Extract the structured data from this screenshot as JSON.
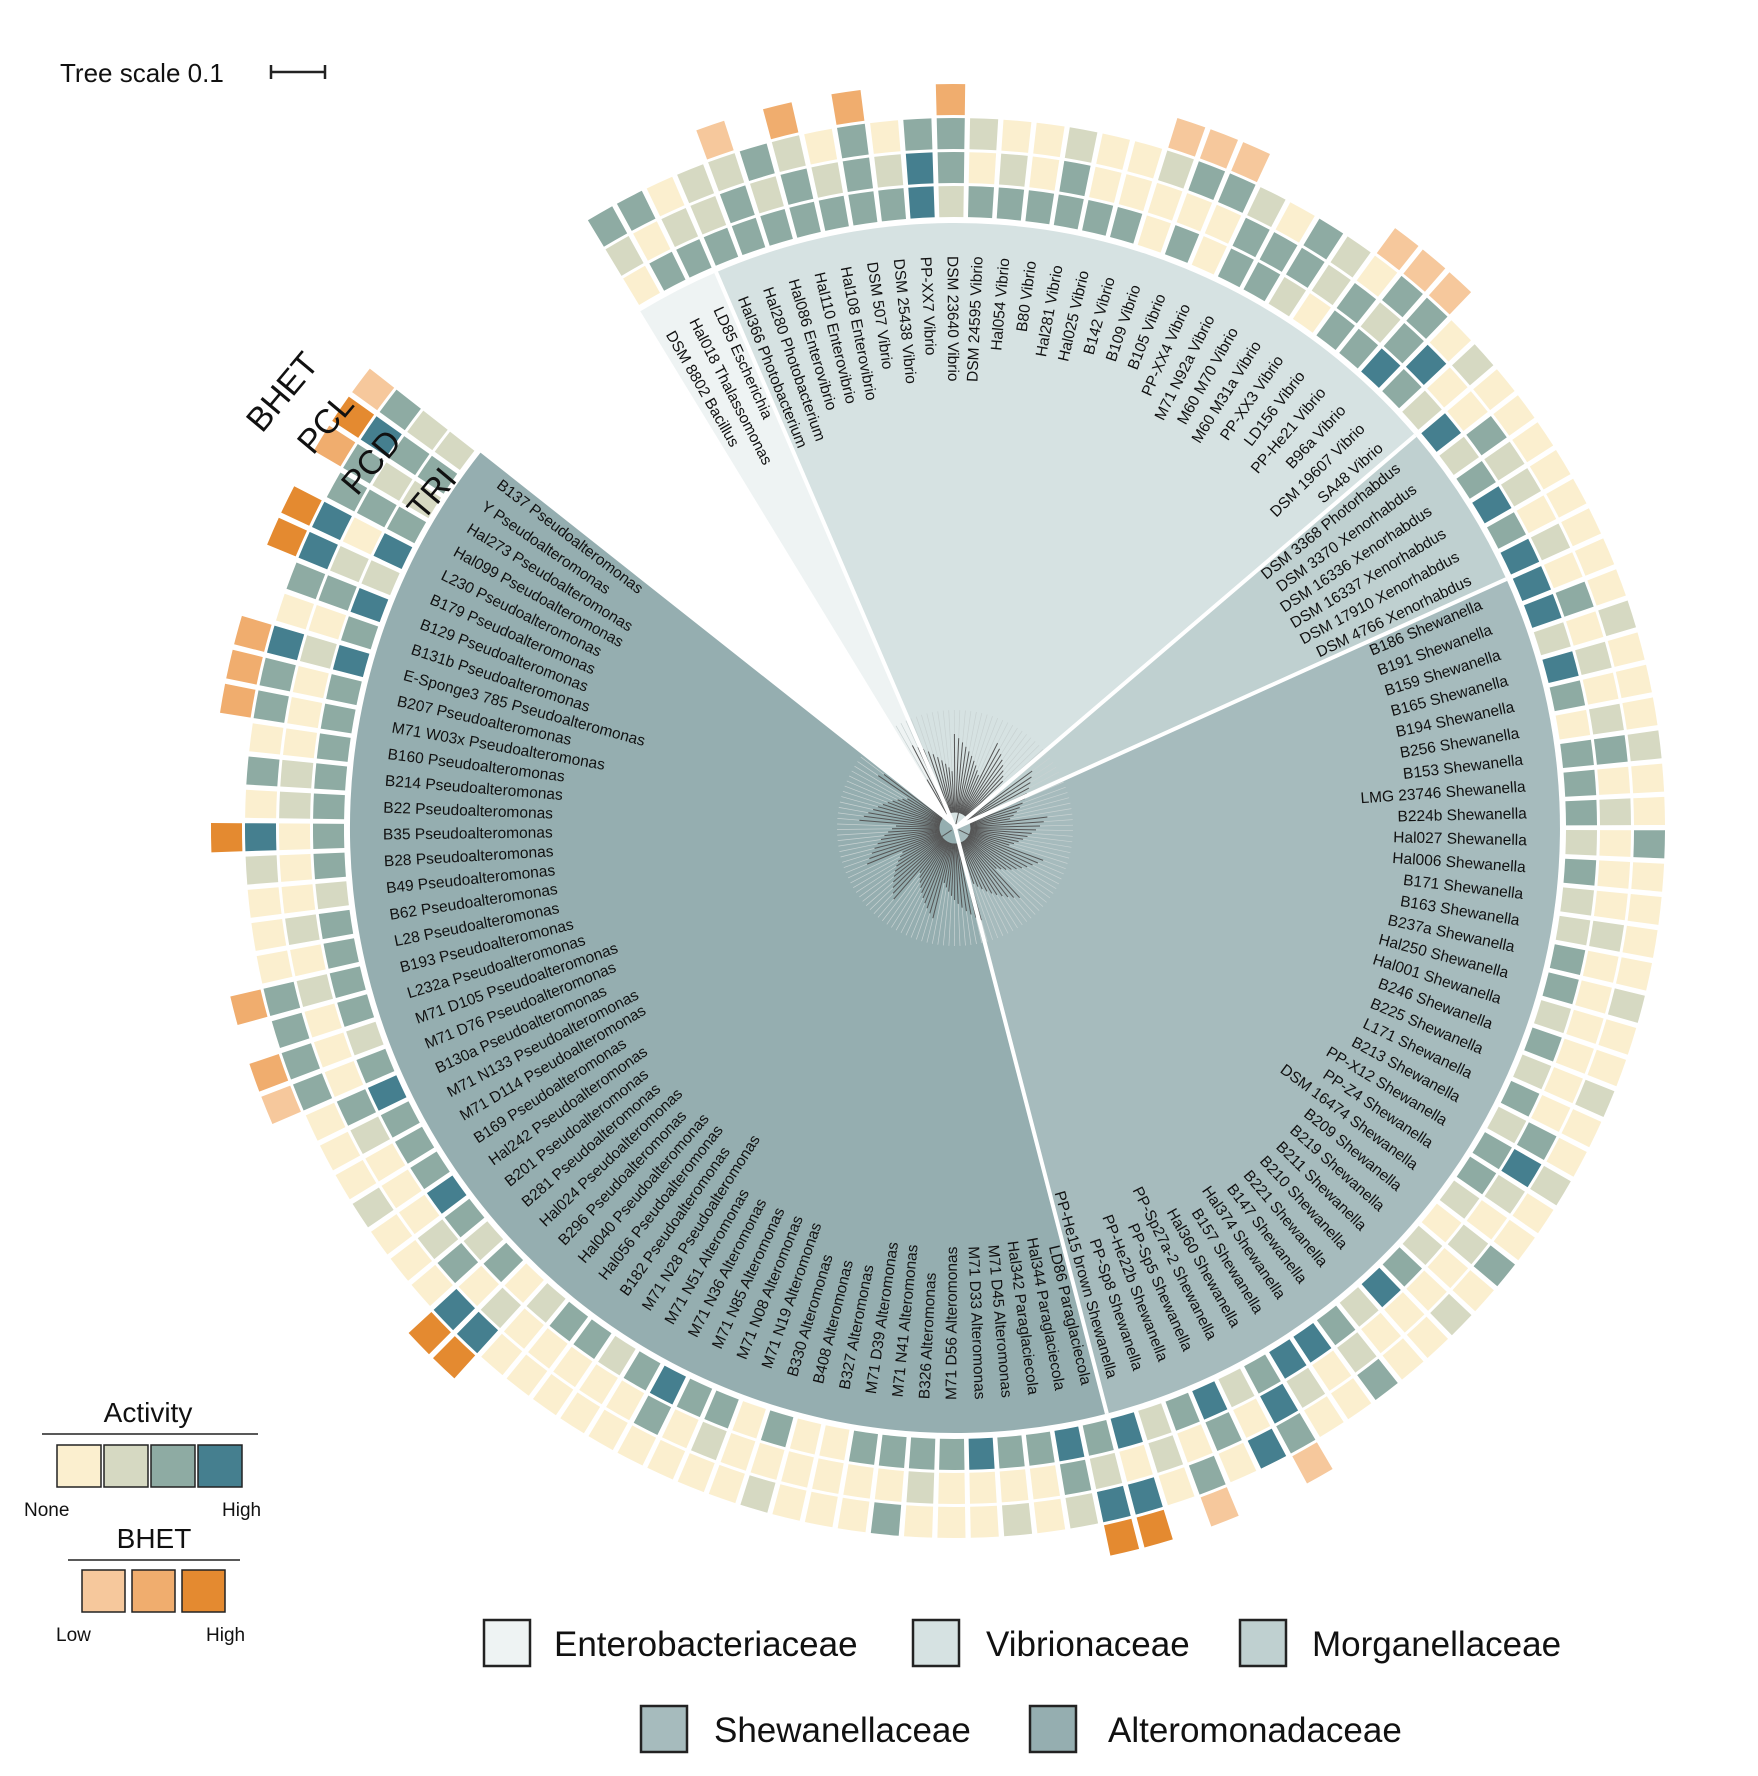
{
  "scale": {
    "label": "Tree scale 0.1"
  },
  "ring_labels": {
    "bhet": "BHET",
    "pcl": "PCL",
    "pcd": "PCD",
    "tri": "TRI"
  },
  "activity_legend": {
    "title": "Activity",
    "low": "None",
    "high": "High",
    "colors": [
      "#fbefcf",
      "#d6d9c2",
      "#8eaba3",
      "#457f8f"
    ]
  },
  "bhet_legend": {
    "title": "BHET",
    "low": "Low",
    "high": "High",
    "colors": [
      "#f6c89c",
      "#f0ad6e",
      "#e48a30"
    ]
  },
  "families": [
    {
      "name": "Enterobacteriaceae",
      "color": "#eef3f3"
    },
    {
      "name": "Vibrionaceae",
      "color": "#d6e2e2"
    },
    {
      "name": "Morganellaceae",
      "color": "#bfd0d0"
    },
    {
      "name": "Shewanellaceae",
      "color": "#a6bbbd"
    },
    {
      "name": "Alteromonadaceae",
      "color": "#95aeb0"
    }
  ],
  "taxa": [
    {
      "name": "DSM 8802 Bacillus",
      "family": 0,
      "tri": 0,
      "pcd": 1,
      "pcl": 2,
      "bhet": 0
    },
    {
      "name": "Hal018 Thalassomonas",
      "family": 0,
      "tri": 2,
      "pcd": 0,
      "pcl": 2,
      "bhet": 0
    },
    {
      "name": "LD85 Escherichia",
      "family": 0,
      "tri": 2,
      "pcd": 1,
      "pcl": 0,
      "bhet": 0
    },
    {
      "name": "Hal366 Photobacterium",
      "family": 1,
      "tri": 2,
      "pcd": 1,
      "pcl": 1,
      "bhet": 0
    },
    {
      "name": "Hal280 Photobacterium",
      "family": 1,
      "tri": 2,
      "pcd": 2,
      "pcl": 1,
      "bhet": 1
    },
    {
      "name": "Hal086 Enterovibrio",
      "family": 1,
      "tri": 2,
      "pcd": 1,
      "pcl": 2,
      "bhet": 0
    },
    {
      "name": "Hal110 Enterovibrio",
      "family": 1,
      "tri": 2,
      "pcd": 2,
      "pcl": 1,
      "bhet": 2
    },
    {
      "name": "Hal108 Enterovibrio",
      "family": 1,
      "tri": 2,
      "pcd": 1,
      "pcl": 0,
      "bhet": 0
    },
    {
      "name": "DSM 507 Vibrio",
      "family": 1,
      "tri": 2,
      "pcd": 2,
      "pcl": 2,
      "bhet": 2
    },
    {
      "name": "DSM 25438 Vibrio",
      "family": 1,
      "tri": 2,
      "pcd": 1,
      "pcl": 0,
      "bhet": 0
    },
    {
      "name": "PP-XX7 Vibrio",
      "family": 1,
      "tri": 3,
      "pcd": 3,
      "pcl": 2,
      "bhet": 0
    },
    {
      "name": "DSM 23640 Vibrio",
      "family": 1,
      "tri": 1,
      "pcd": 2,
      "pcl": 2,
      "bhet": 2
    },
    {
      "name": "DSM 24595 Vibrio",
      "family": 1,
      "tri": 2,
      "pcd": 0,
      "pcl": 1,
      "bhet": 0
    },
    {
      "name": "Hal054 Vibrio",
      "family": 1,
      "tri": 2,
      "pcd": 1,
      "pcl": 0,
      "bhet": 0
    },
    {
      "name": "B80 Vibrio",
      "family": 1,
      "tri": 2,
      "pcd": 0,
      "pcl": 0,
      "bhet": 0
    },
    {
      "name": "Hal281 Vibrio",
      "family": 1,
      "tri": 2,
      "pcd": 2,
      "pcl": 1,
      "bhet": 0
    },
    {
      "name": "Hal025 Vibrio",
      "family": 1,
      "tri": 2,
      "pcd": 0,
      "pcl": 0,
      "bhet": 0
    },
    {
      "name": "B142 Vibrio",
      "family": 1,
      "tri": 2,
      "pcd": 0,
      "pcl": 0,
      "bhet": 0
    },
    {
      "name": "B109 Vibrio",
      "family": 1,
      "tri": 0,
      "pcd": 0,
      "pcl": 1,
      "bhet": 1
    },
    {
      "name": "B105 Vibrio",
      "family": 1,
      "tri": 2,
      "pcd": 0,
      "pcl": 2,
      "bhet": 1
    },
    {
      "name": "PP-XX4 Vibrio",
      "family": 1,
      "tri": 0,
      "pcd": 0,
      "pcl": 2,
      "bhet": 1
    },
    {
      "name": "M71 N92a Vibrio",
      "family": 1,
      "tri": 2,
      "pcd": 2,
      "pcl": 1,
      "bhet": 0
    },
    {
      "name": "M60 M70 Vibrio",
      "family": 1,
      "tri": 2,
      "pcd": 2,
      "pcl": 0,
      "bhet": 0
    },
    {
      "name": "M60 M31a Vibrio",
      "family": 1,
      "tri": 1,
      "pcd": 2,
      "pcl": 2,
      "bhet": 0
    },
    {
      "name": "PP-XX3 Vibrio",
      "family": 1,
      "tri": 0,
      "pcd": 1,
      "pcl": 1,
      "bhet": 0
    },
    {
      "name": "LD156 Vibrio",
      "family": 1,
      "tri": 2,
      "pcd": 2,
      "pcl": 0,
      "bhet": 1
    },
    {
      "name": "PP-He21 Vibrio",
      "family": 1,
      "tri": 2,
      "pcd": 1,
      "pcl": 2,
      "bhet": 1
    },
    {
      "name": "B96a Vibrio",
      "family": 1,
      "tri": 3,
      "pcd": 2,
      "pcl": 2,
      "bhet": 1
    },
    {
      "name": "DSM 19607 Vibrio",
      "family": 1,
      "tri": 2,
      "pcd": 3,
      "pcl": 0,
      "bhet": 0
    },
    {
      "name": "SA48 Vibrio",
      "family": 1,
      "tri": 1,
      "pcd": 0,
      "pcl": 1,
      "bhet": 0
    },
    {
      "name": "DSM 3368 Photorhabdus",
      "family": 2,
      "tri": 3,
      "pcd": 0,
      "pcl": 0,
      "bhet": 0
    },
    {
      "name": "DSM 3370 Xenorhabdus",
      "family": 2,
      "tri": 1,
      "pcd": 2,
      "pcl": 0,
      "bhet": 0
    },
    {
      "name": "DSM 16336 Xenorhabdus",
      "family": 2,
      "tri": 2,
      "pcd": 1,
      "pcl": 0,
      "bhet": 0
    },
    {
      "name": "DSM 16337 Xenorhabdus",
      "family": 2,
      "tri": 3,
      "pcd": 1,
      "pcl": 0,
      "bhet": 0
    },
    {
      "name": "DSM 17910 Xenorhabdus",
      "family": 2,
      "tri": 2,
      "pcd": 0,
      "pcl": 0,
      "bhet": 0
    },
    {
      "name": "DSM 4766 Xenorhabdus",
      "family": 2,
      "tri": 3,
      "pcd": 1,
      "pcl": 0,
      "bhet": 0
    },
    {
      "name": "B186 Shewanella",
      "family": 3,
      "tri": 3,
      "pcd": 0,
      "pcl": 0,
      "bhet": 0
    },
    {
      "name": "B191 Shewanella",
      "family": 3,
      "tri": 3,
      "pcd": 2,
      "pcl": 0,
      "bhet": 0
    },
    {
      "name": "B159 Shewanella",
      "family": 3,
      "tri": 1,
      "pcd": 0,
      "pcl": 1,
      "bhet": 0
    },
    {
      "name": "B165 Shewanella",
      "family": 3,
      "tri": 3,
      "pcd": 1,
      "pcl": 0,
      "bhet": 0
    },
    {
      "name": "B194 Shewanella",
      "family": 3,
      "tri": 2,
      "pcd": 0,
      "pcl": 0,
      "bhet": 0
    },
    {
      "name": "B256 Shewanella",
      "family": 3,
      "tri": 0,
      "pcd": 1,
      "pcl": 0,
      "bhet": 0
    },
    {
      "name": "B153 Shewanella",
      "family": 3,
      "tri": 2,
      "pcd": 2,
      "pcl": 1,
      "bhet": 0
    },
    {
      "name": "LMG 23746 Shewanella",
      "family": 3,
      "tri": 2,
      "pcd": 0,
      "pcl": 0,
      "bhet": 0
    },
    {
      "name": "B224b Shewanella",
      "family": 3,
      "tri": 2,
      "pcd": 1,
      "pcl": 0,
      "bhet": 0
    },
    {
      "name": "Hal027 Shewanella",
      "family": 3,
      "tri": 1,
      "pcd": 0,
      "pcl": 2,
      "bhet": 0
    },
    {
      "name": "Hal006 Shewanella",
      "family": 3,
      "tri": 2,
      "pcd": 0,
      "pcl": 0,
      "bhet": 0
    },
    {
      "name": "B171 Shewanella",
      "family": 3,
      "tri": 1,
      "pcd": 0,
      "pcl": 0,
      "bhet": 0
    },
    {
      "name": "B163 Shewanella",
      "family": 3,
      "tri": 1,
      "pcd": 1,
      "pcl": 0,
      "bhet": 0
    },
    {
      "name": "B237a Shewanella",
      "family": 3,
      "tri": 2,
      "pcd": 0,
      "pcl": 0,
      "bhet": 0
    },
    {
      "name": "Hal250 Shewanella",
      "family": 3,
      "tri": 2,
      "pcd": 0,
      "pcl": 1,
      "bhet": 0
    },
    {
      "name": "Hal001 Shewanella",
      "family": 3,
      "tri": 1,
      "pcd": 0,
      "pcl": 0,
      "bhet": 0
    },
    {
      "name": "B246 Shewanella",
      "family": 3,
      "tri": 2,
      "pcd": 0,
      "pcl": 0,
      "bhet": 0
    },
    {
      "name": "B225 Shewanella",
      "family": 3,
      "tri": 1,
      "pcd": 0,
      "pcl": 1,
      "bhet": 0
    },
    {
      "name": "L171 Shewanella",
      "family": 3,
      "tri": 2,
      "pcd": 0,
      "pcl": 0,
      "bhet": 0
    },
    {
      "name": "B213 Shewanella",
      "family": 3,
      "tri": 1,
      "pcd": 2,
      "pcl": 0,
      "bhet": 0
    },
    {
      "name": "PP-X12 Shewanella",
      "family": 3,
      "tri": 2,
      "pcd": 3,
      "pcl": 1,
      "bhet": 0
    },
    {
      "name": "PP-Z4 Shewanella",
      "family": 3,
      "tri": 2,
      "pcd": 1,
      "pcl": 0,
      "bhet": 0
    },
    {
      "name": "DSM 16474 Shewanella",
      "family": 3,
      "tri": 1,
      "pcd": 0,
      "pcl": 0,
      "bhet": 0
    },
    {
      "name": "B209 Shewanella",
      "family": 3,
      "tri": 0,
      "pcd": 1,
      "pcl": 2,
      "bhet": 0
    },
    {
      "name": "B219 Shewanella",
      "family": 3,
      "tri": 1,
      "pcd": 0,
      "pcl": 0,
      "bhet": 0
    },
    {
      "name": "B211 Shewanella",
      "family": 3,
      "tri": 2,
      "pcd": 0,
      "pcl": 1,
      "bhet": 0
    },
    {
      "name": "B210 Shewanella",
      "family": 3,
      "tri": 3,
      "pcd": 0,
      "pcl": 0,
      "bhet": 0
    },
    {
      "name": "B221 Shewanella",
      "family": 3,
      "tri": 1,
      "pcd": 0,
      "pcl": 0,
      "bhet": 0
    },
    {
      "name": "B147 Shewanella",
      "family": 3,
      "tri": 2,
      "pcd": 1,
      "pcl": 2,
      "bhet": 0
    },
    {
      "name": "Hal374 Shewanella",
      "family": 3,
      "tri": 3,
      "pcd": 0,
      "pcl": 0,
      "bhet": 0
    },
    {
      "name": "B157 Shewanella",
      "family": 3,
      "tri": 3,
      "pcd": 1,
      "pcl": 0,
      "bhet": 0
    },
    {
      "name": "Hal360 Shewanella",
      "family": 3,
      "tri": 2,
      "pcd": 3,
      "pcl": 2,
      "bhet": 1
    },
    {
      "name": "PP-Sp27a-2 Shewanella",
      "family": 3,
      "tri": 1,
      "pcd": 0,
      "pcl": 3,
      "bhet": 0
    },
    {
      "name": "PP-Sp5 Shewanella",
      "family": 3,
      "tri": 3,
      "pcd": 2,
      "pcl": 0,
      "bhet": 0
    },
    {
      "name": "PP-He22b Shewanella",
      "family": 3,
      "tri": 2,
      "pcd": 0,
      "pcl": 2,
      "bhet": 1
    },
    {
      "name": "PP-Sp8 Shewanella",
      "family": 3,
      "tri": 1,
      "pcd": 1,
      "pcl": 0,
      "bhet": 0
    },
    {
      "name": "PP-He15 brown Shewanella",
      "family": 3,
      "tri": 3,
      "pcd": 0,
      "pcl": 3,
      "bhet": 3
    },
    {
      "name": "LD86 Paraglaciecola",
      "family": 4,
      "tri": 2,
      "pcd": 1,
      "pcl": 3,
      "bhet": 3
    },
    {
      "name": "Hal344 Paraglaciecola",
      "family": 4,
      "tri": 3,
      "pcd": 2,
      "pcl": 1,
      "bhet": 0
    },
    {
      "name": "Hal342 Paraglaciecola",
      "family": 4,
      "tri": 2,
      "pcd": 0,
      "pcl": 0,
      "bhet": 0
    },
    {
      "name": "M71 D45 Alteromonas",
      "family": 4,
      "tri": 2,
      "pcd": 0,
      "pcl": 1,
      "bhet": 0
    },
    {
      "name": "M71 D33 Alteromonas",
      "family": 4,
      "tri": 3,
      "pcd": 0,
      "pcl": 0,
      "bhet": 0
    },
    {
      "name": "M71 D56 Alteromonas",
      "family": 4,
      "tri": 2,
      "pcd": 0,
      "pcl": 0,
      "bhet": 0
    },
    {
      "name": "B326 Alteromonas",
      "family": 4,
      "tri": 2,
      "pcd": 1,
      "pcl": 0,
      "bhet": 0
    },
    {
      "name": "M71 N41 Alteromonas",
      "family": 4,
      "tri": 2,
      "pcd": 0,
      "pcl": 2,
      "bhet": 0
    },
    {
      "name": "M71 D39 Alteromonas",
      "family": 4,
      "tri": 2,
      "pcd": 0,
      "pcl": 0,
      "bhet": 0
    },
    {
      "name": "B327 Alteromonas",
      "family": 4,
      "tri": 0,
      "pcd": 0,
      "pcl": 0,
      "bhet": 0
    },
    {
      "name": "B408 Alteromonas",
      "family": 4,
      "tri": 0,
      "pcd": 0,
      "pcl": 0,
      "bhet": 0
    },
    {
      "name": "B330 Alteromonas",
      "family": 4,
      "tri": 2,
      "pcd": 0,
      "pcl": 1,
      "bhet": 0
    },
    {
      "name": "M71 N19 Alteromonas",
      "family": 4,
      "tri": 0,
      "pcd": 0,
      "pcl": 0,
      "bhet": 0
    },
    {
      "name": "M71 N08 Alteromonas",
      "family": 4,
      "tri": 2,
      "pcd": 1,
      "pcl": 0,
      "bhet": 0
    },
    {
      "name": "M71 N85 Alteromonas",
      "family": 4,
      "tri": 2,
      "pcd": 0,
      "pcl": 0,
      "bhet": 0
    },
    {
      "name": "M71 N36 Alteromonas",
      "family": 4,
      "tri": 3,
      "pcd": 2,
      "pcl": 0,
      "bhet": 0
    },
    {
      "name": "M71 N51 Alteromonas",
      "family": 4,
      "tri": 2,
      "pcd": 0,
      "pcl": 0,
      "bhet": 0
    },
    {
      "name": "M71 N28 Pseudoalteromonas",
      "family": 4,
      "tri": 1,
      "pcd": 0,
      "pcl": 0,
      "bhet": 0
    },
    {
      "name": "B182 Pseudoalteromonas",
      "family": 4,
      "tri": 2,
      "pcd": 0,
      "pcl": 0,
      "bhet": 0
    },
    {
      "name": "Hal056 Pseudoalteromonas",
      "family": 4,
      "tri": 2,
      "pcd": 0,
      "pcl": 0,
      "bhet": 0
    },
    {
      "name": "Hal040 Pseudoalteromonas",
      "family": 4,
      "tri": 1,
      "pcd": 0,
      "pcl": 0,
      "bhet": 0
    },
    {
      "name": "B296 Pseudoalteromonas",
      "family": 4,
      "tri": 0,
      "pcd": 1,
      "pcl": 3,
      "bhet": 3
    },
    {
      "name": "Hal024 Pseudoalteromonas",
      "family": 4,
      "tri": 2,
      "pcd": 0,
      "pcl": 3,
      "bhet": 3
    },
    {
      "name": "B281 Pseudoalteromonas",
      "family": 4,
      "tri": 1,
      "pcd": 2,
      "pcl": 0,
      "bhet": 0
    },
    {
      "name": "B201 Pseudoalteromonas",
      "family": 4,
      "tri": 2,
      "pcd": 1,
      "pcl": 0,
      "bhet": 0
    },
    {
      "name": "Hal242 Pseudoalteromonas",
      "family": 4,
      "tri": 3,
      "pcd": 0,
      "pcl": 0,
      "bhet": 0
    },
    {
      "name": "B169 Pseudoalteromonas",
      "family": 4,
      "tri": 2,
      "pcd": 0,
      "pcl": 1,
      "bhet": 0
    },
    {
      "name": "M71 D114 Pseudoalteromonas",
      "family": 4,
      "tri": 2,
      "pcd": 0,
      "pcl": 0,
      "bhet": 0
    },
    {
      "name": "M71 N133 Pseudoalteromonas",
      "family": 4,
      "tri": 2,
      "pcd": 1,
      "pcl": 0,
      "bhet": 0
    },
    {
      "name": "B130a Pseudoalteromonas",
      "family": 4,
      "tri": 3,
      "pcd": 2,
      "pcl": 0,
      "bhet": 0
    },
    {
      "name": "M71 D76 Pseudoalteromonas",
      "family": 4,
      "tri": 2,
      "pcd": 0,
      "pcl": 2,
      "bhet": 1
    },
    {
      "name": "M71 D105 Pseudoalteromonas",
      "family": 4,
      "tri": 1,
      "pcd": 0,
      "pcl": 2,
      "bhet": 2
    },
    {
      "name": "L232a Pseudoalteromonas",
      "family": 4,
      "tri": 2,
      "pcd": 0,
      "pcl": 2,
      "bhet": 0
    },
    {
      "name": "B193 Pseudoalteromonas",
      "family": 4,
      "tri": 2,
      "pcd": 1,
      "pcl": 2,
      "bhet": 2
    },
    {
      "name": "L28 Pseudoalteromonas",
      "family": 4,
      "tri": 2,
      "pcd": 0,
      "pcl": 0,
      "bhet": 0
    },
    {
      "name": "B62 Pseudoalteromonas",
      "family": 4,
      "tri": 2,
      "pcd": 1,
      "pcl": 0,
      "bhet": 0
    },
    {
      "name": "B49 Pseudoalteromonas",
      "family": 4,
      "tri": 1,
      "pcd": 0,
      "pcl": 0,
      "bhet": 0
    },
    {
      "name": "B28 Pseudoalteromonas",
      "family": 4,
      "tri": 2,
      "pcd": 0,
      "pcl": 1,
      "bhet": 0
    },
    {
      "name": "B35 Pseudoalteromonas",
      "family": 4,
      "tri": 2,
      "pcd": 0,
      "pcl": 3,
      "bhet": 3
    },
    {
      "name": "B22 Pseudoalteromonas",
      "family": 4,
      "tri": 2,
      "pcd": 1,
      "pcl": 0,
      "bhet": 0
    },
    {
      "name": "B214 Pseudoalteromonas",
      "family": 4,
      "tri": 2,
      "pcd": 1,
      "pcl": 2,
      "bhet": 0
    },
    {
      "name": "B160 Pseudoalteromonas",
      "family": 4,
      "tri": 2,
      "pcd": 0,
      "pcl": 0,
      "bhet": 0
    },
    {
      "name": "M71 W03x Pseudoalteromonas",
      "family": 4,
      "tri": 2,
      "pcd": 0,
      "pcl": 2,
      "bhet": 2
    },
    {
      "name": "B207 Pseudoalteromonas",
      "family": 4,
      "tri": 2,
      "pcd": 0,
      "pcl": 2,
      "bhet": 2
    },
    {
      "name": "E-Sponge3 785 Pseudoalteromonas",
      "family": 4,
      "tri": 3,
      "pcd": 1,
      "pcl": 3,
      "bhet": 2
    },
    {
      "name": "B131b Pseudoalteromonas",
      "family": 4,
      "tri": 2,
      "pcd": 0,
      "pcl": 0,
      "bhet": 0
    },
    {
      "name": "B129 Pseudoalteromonas",
      "family": 4,
      "tri": 3,
      "pcd": 2,
      "pcl": 2,
      "bhet": 0
    },
    {
      "name": "B179 Pseudoalteromonas",
      "family": 4,
      "tri": 1,
      "pcd": 1,
      "pcl": 3,
      "bhet": 3
    },
    {
      "name": "L230 Pseudoalteromonas",
      "family": 4,
      "tri": 3,
      "pcd": 0,
      "pcl": 3,
      "bhet": 3
    },
    {
      "name": "Hal099 Pseudoalteromonas",
      "family": 4,
      "tri": 2,
      "pcd": 2,
      "pcl": 2,
      "bhet": 0
    },
    {
      "name": "Hal273 Pseudoalteromonas",
      "family": 4,
      "tri": 1,
      "pcd": 1,
      "pcl": 2,
      "bhet": 2
    },
    {
      "name": "Y Pseudoalteromonas",
      "family": 4,
      "tri": 2,
      "pcd": 2,
      "pcl": 3,
      "bhet": 3
    },
    {
      "name": "B137 Pseudoalteromonas",
      "family": 4,
      "tri": 1,
      "pcd": 1,
      "pcl": 2,
      "bhet": 1
    }
  ]
}
